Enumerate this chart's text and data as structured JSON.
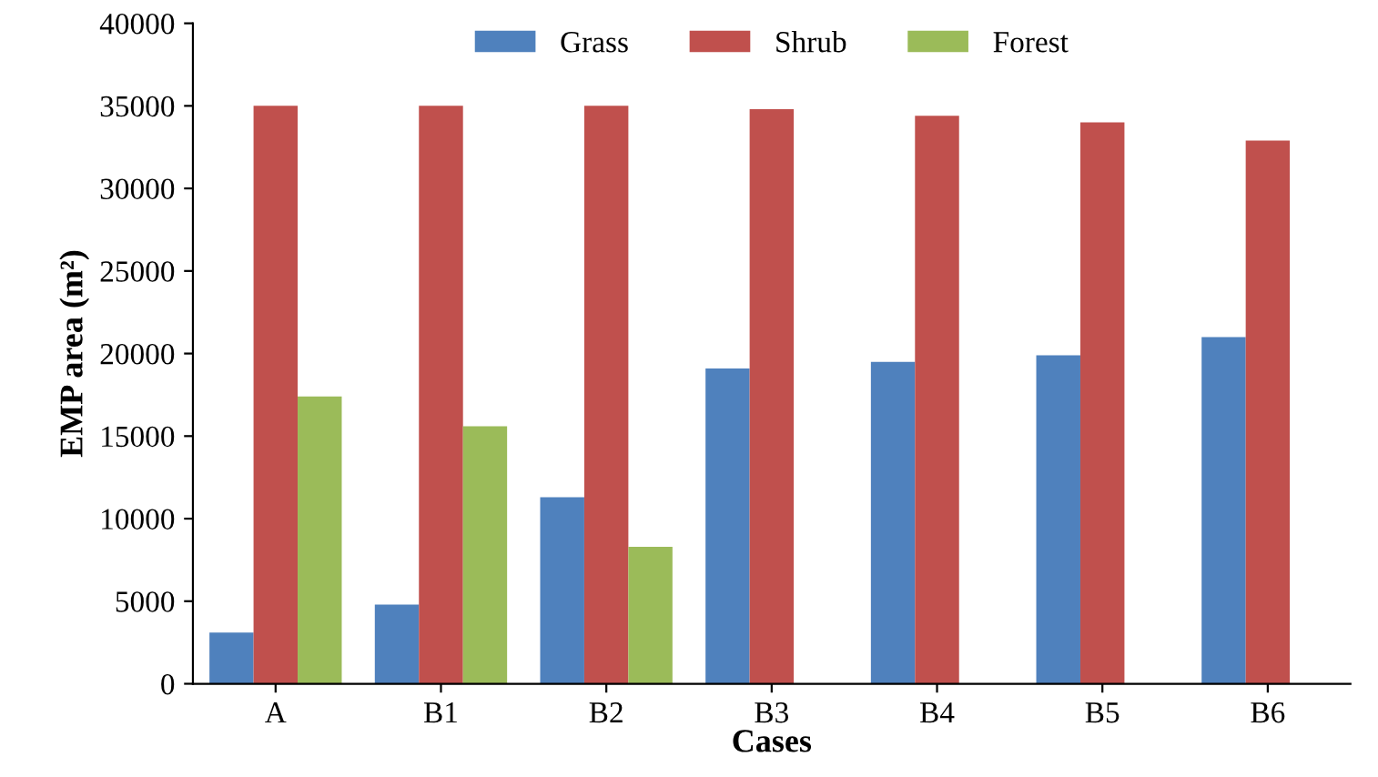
{
  "chart_data": {
    "type": "bar",
    "xlabel": "Cases",
    "ylabel": "EMP area (m²)",
    "categories": [
      "A",
      "B1",
      "B2",
      "B3",
      "B4",
      "B5",
      "B6"
    ],
    "series": [
      {
        "name": "Grass",
        "color": "#4f81bd",
        "values": [
          3100,
          4800,
          11300,
          19100,
          19500,
          19900,
          21000
        ]
      },
      {
        "name": "Shrub",
        "color": "#c0504d",
        "values": [
          35000,
          35000,
          35000,
          34800,
          34400,
          34000,
          32900
        ]
      },
      {
        "name": "Forest",
        "color": "#9bbb59",
        "values": [
          17400,
          15600,
          8300,
          null,
          null,
          null,
          null
        ]
      }
    ],
    "ylim": [
      0,
      40000
    ],
    "yticks": [
      0,
      5000,
      10000,
      15000,
      20000,
      25000,
      30000,
      35000,
      40000
    ],
    "grid": false,
    "legend": "top"
  }
}
